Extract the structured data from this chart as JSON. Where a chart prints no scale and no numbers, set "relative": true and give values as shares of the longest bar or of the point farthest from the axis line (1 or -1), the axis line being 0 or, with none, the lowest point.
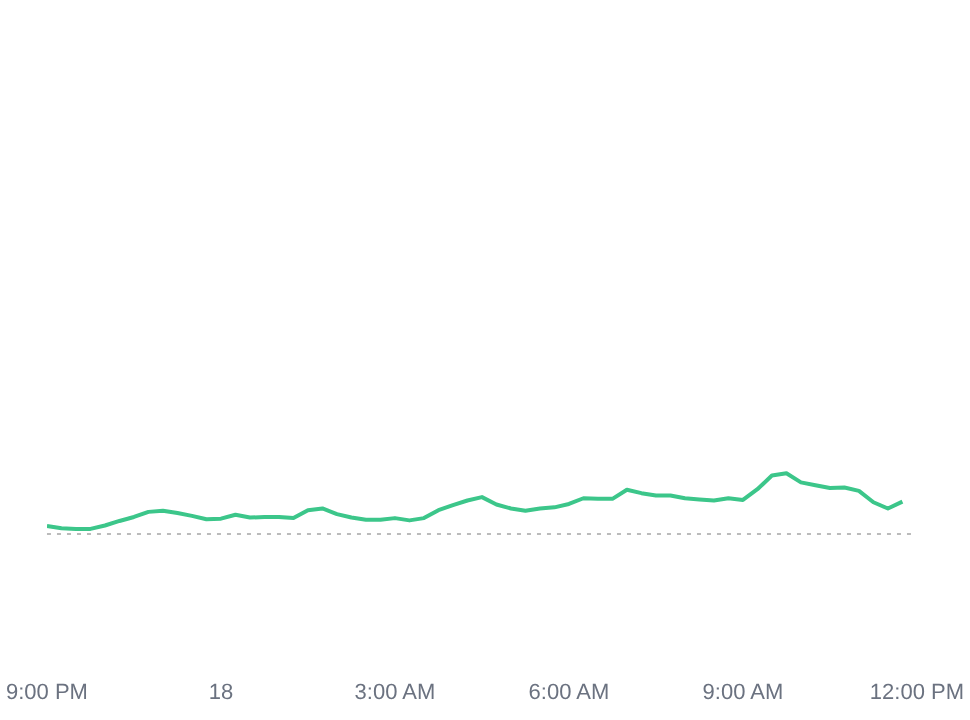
{
  "chart_data": {
    "type": "line",
    "relative": true,
    "legend": false,
    "grid": false,
    "categories": [
      "9:00 PM",
      null,
      null,
      null,
      null,
      null,
      null,
      null,
      null,
      null,
      null,
      null,
      "18",
      null,
      null,
      null,
      null,
      null,
      null,
      null,
      null,
      null,
      null,
      null,
      "3:00 AM",
      null,
      null,
      null,
      null,
      null,
      null,
      null,
      null,
      null,
      null,
      null,
      "6:00 AM",
      null,
      null,
      null,
      null,
      null,
      null,
      null,
      null,
      null,
      null,
      null,
      "9:00 AM",
      null,
      null,
      null,
      null,
      null,
      null,
      null,
      null,
      null,
      null,
      null,
      "12:00 PM"
    ],
    "series": [
      {
        "color": "#3cc68a",
        "values": [
          0.07,
          0.03,
          0.02,
          0.02,
          0.08,
          0.16,
          0.23,
          0.32,
          0.34,
          0.3,
          0.25,
          0.19,
          0.2,
          0.27,
          0.22,
          0.23,
          0.23,
          0.21,
          0.35,
          0.38,
          0.28,
          0.22,
          0.18,
          0.18,
          0.21,
          0.17,
          0.21,
          0.35,
          0.44,
          0.52,
          0.58,
          0.45,
          0.38,
          0.34,
          0.38,
          0.4,
          0.46,
          0.56,
          0.55,
          0.55,
          0.71,
          0.65,
          0.61,
          0.61,
          0.56,
          0.54,
          0.52,
          0.56,
          0.53,
          0.72,
          0.96,
          1,
          0.84,
          0.79,
          0.74,
          0.75,
          0.69,
          0.49,
          0.38,
          0.5,
          null
        ]
      }
    ],
    "line_style": "solid",
    "marker": "none",
    "ref_lines": [
      {
        "axis": "y",
        "value": -0.07,
        "color": "#bbbbbb",
        "line_style": "dotted"
      }
    ]
  }
}
